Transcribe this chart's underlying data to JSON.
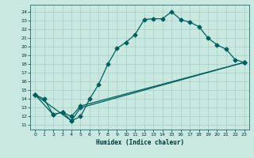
{
  "xlabel": "Humidex (Indice chaleur)",
  "bg_color": "#c8e8e0",
  "line_color": "#006060",
  "grid_color": "#a0c8c0",
  "xlim": [
    -0.5,
    23.5
  ],
  "ylim": [
    10.5,
    24.8
  ],
  "xticks": [
    0,
    1,
    2,
    3,
    4,
    5,
    6,
    7,
    8,
    9,
    10,
    11,
    12,
    13,
    14,
    15,
    16,
    17,
    18,
    19,
    20,
    21,
    22,
    23
  ],
  "yticks": [
    11,
    12,
    13,
    14,
    15,
    16,
    17,
    18,
    19,
    20,
    21,
    22,
    23,
    24
  ],
  "line1_x": [
    0,
    1,
    2,
    3,
    4,
    5,
    6,
    7,
    8,
    9,
    10,
    11,
    12,
    13,
    14,
    15,
    16,
    17,
    18,
    19,
    20,
    21,
    22,
    23
  ],
  "line1_y": [
    14.5,
    14.0,
    12.2,
    12.5,
    11.5,
    12.0,
    14.0,
    15.7,
    18.0,
    19.8,
    20.5,
    21.4,
    23.1,
    23.2,
    23.2,
    24.0,
    23.1,
    22.8,
    22.3,
    21.0,
    20.2,
    19.7,
    18.5,
    18.2
  ],
  "line2_x": [
    0,
    2,
    3,
    4,
    5,
    23
  ],
  "line2_y": [
    14.5,
    12.2,
    12.5,
    12.0,
    13.2,
    18.2
  ],
  "line3_x": [
    0,
    4,
    5,
    23
  ],
  "line3_y": [
    14.5,
    11.5,
    13.0,
    18.2
  ],
  "marker_size": 2.5,
  "linewidth": 0.9
}
